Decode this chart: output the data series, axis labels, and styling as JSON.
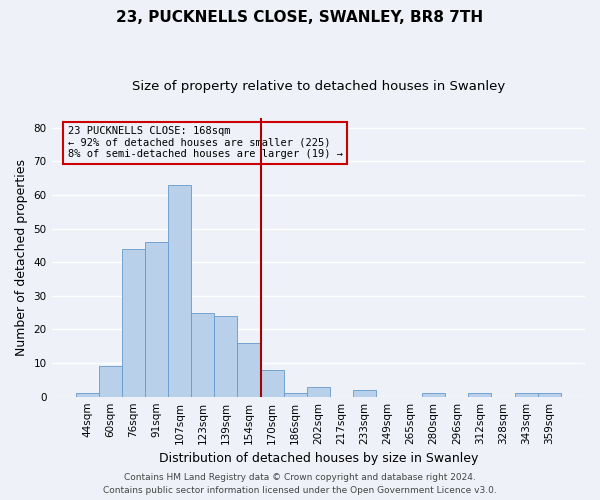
{
  "title": "23, PUCKNELLS CLOSE, SWANLEY, BR8 7TH",
  "subtitle": "Size of property relative to detached houses in Swanley",
  "xlabel": "Distribution of detached houses by size in Swanley",
  "ylabel": "Number of detached properties",
  "bin_labels": [
    "44sqm",
    "60sqm",
    "76sqm",
    "91sqm",
    "107sqm",
    "123sqm",
    "139sqm",
    "154sqm",
    "170sqm",
    "186sqm",
    "202sqm",
    "217sqm",
    "233sqm",
    "249sqm",
    "265sqm",
    "280sqm",
    "296sqm",
    "312sqm",
    "328sqm",
    "343sqm",
    "359sqm"
  ],
  "bar_heights": [
    1,
    9,
    44,
    46,
    63,
    25,
    24,
    16,
    8,
    1,
    3,
    0,
    2,
    0,
    0,
    1,
    0,
    1,
    0,
    1,
    1
  ],
  "bar_color": "#b8d0ea",
  "bar_edge_color": "#6699cc",
  "vline_x_index": 8,
  "vline_color": "#aa0000",
  "ylim": [
    0,
    83
  ],
  "yticks": [
    0,
    10,
    20,
    30,
    40,
    50,
    60,
    70,
    80
  ],
  "annotation_title": "23 PUCKNELLS CLOSE: 168sqm",
  "annotation_line1": "← 92% of detached houses are smaller (225)",
  "annotation_line2": "8% of semi-detached houses are larger (19) →",
  "annotation_box_color": "#cc0000",
  "footer1": "Contains HM Land Registry data © Crown copyright and database right 2024.",
  "footer2": "Contains public sector information licensed under the Open Government Licence v3.0.",
  "background_color": "#eef2f8",
  "grid_color": "#ffffff",
  "title_fontsize": 11,
  "subtitle_fontsize": 9.5,
  "axis_label_fontsize": 9,
  "tick_fontsize": 7.5,
  "footer_fontsize": 6.5
}
